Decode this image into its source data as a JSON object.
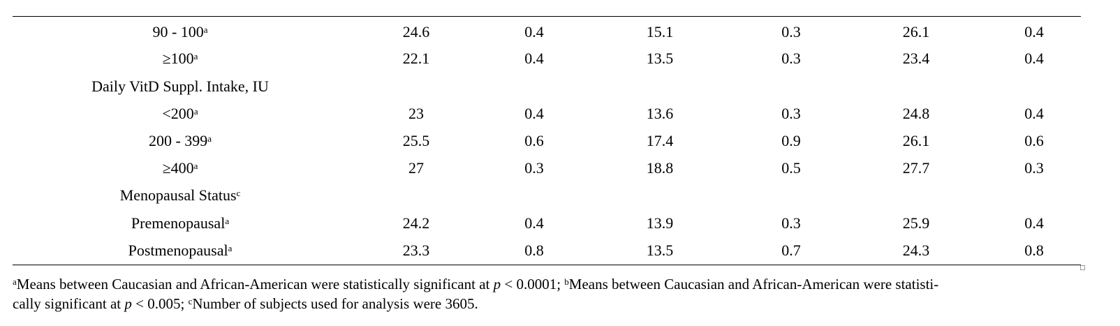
{
  "table": {
    "rows": [
      {
        "label": "90 - 100",
        "sup": "a",
        "cells": [
          "24.6",
          "0.4",
          "15.1",
          "0.3",
          "26.1",
          "0.4"
        ]
      },
      {
        "label": "≥100",
        "sup": "a",
        "cells": [
          "22.1",
          "0.4",
          "13.5",
          "0.3",
          "23.4",
          "0.4"
        ]
      },
      {
        "label": "Daily VitD Suppl. Intake, IU"
      },
      {
        "label": "<200",
        "sup": "a",
        "cells": [
          "23",
          "0.4",
          "13.6",
          "0.3",
          "24.8",
          "0.4"
        ]
      },
      {
        "label": "200 - 399",
        "sup": "a",
        "cells": [
          "25.5",
          "0.6",
          "17.4",
          "0.9",
          "26.1",
          "0.6"
        ]
      },
      {
        "label": "≥400",
        "sup": "a",
        "cells": [
          "27",
          "0.3",
          "18.8",
          "0.5",
          "27.7",
          "0.3"
        ]
      },
      {
        "label": "Menopausal Status",
        "sup": "c"
      },
      {
        "label": "Premenopausal",
        "sup": "a",
        "cells": [
          "24.2",
          "0.4",
          "13.9",
          "0.3",
          "25.9",
          "0.4"
        ]
      },
      {
        "label": "Postmenopausal",
        "sup": "a",
        "cells": [
          "23.3",
          "0.8",
          "13.5",
          "0.7",
          "24.3",
          "0.8"
        ]
      }
    ]
  },
  "footnote": {
    "lines": [
      [
        {
          "sup": "a"
        },
        {
          "text": "Means between Caucasian and African-American were statistically significant at "
        },
        {
          "italic": "p"
        },
        {
          "text": " < 0.0001; "
        },
        {
          "sup": "b"
        },
        {
          "text": "Means between Caucasian and African-American were statisti-"
        }
      ],
      [
        {
          "text": "cally significant at "
        },
        {
          "italic": "p"
        },
        {
          "text": " < 0.005; "
        },
        {
          "sup": "c"
        },
        {
          "text": "Number of subjects used for analysis were 3605."
        }
      ]
    ]
  }
}
